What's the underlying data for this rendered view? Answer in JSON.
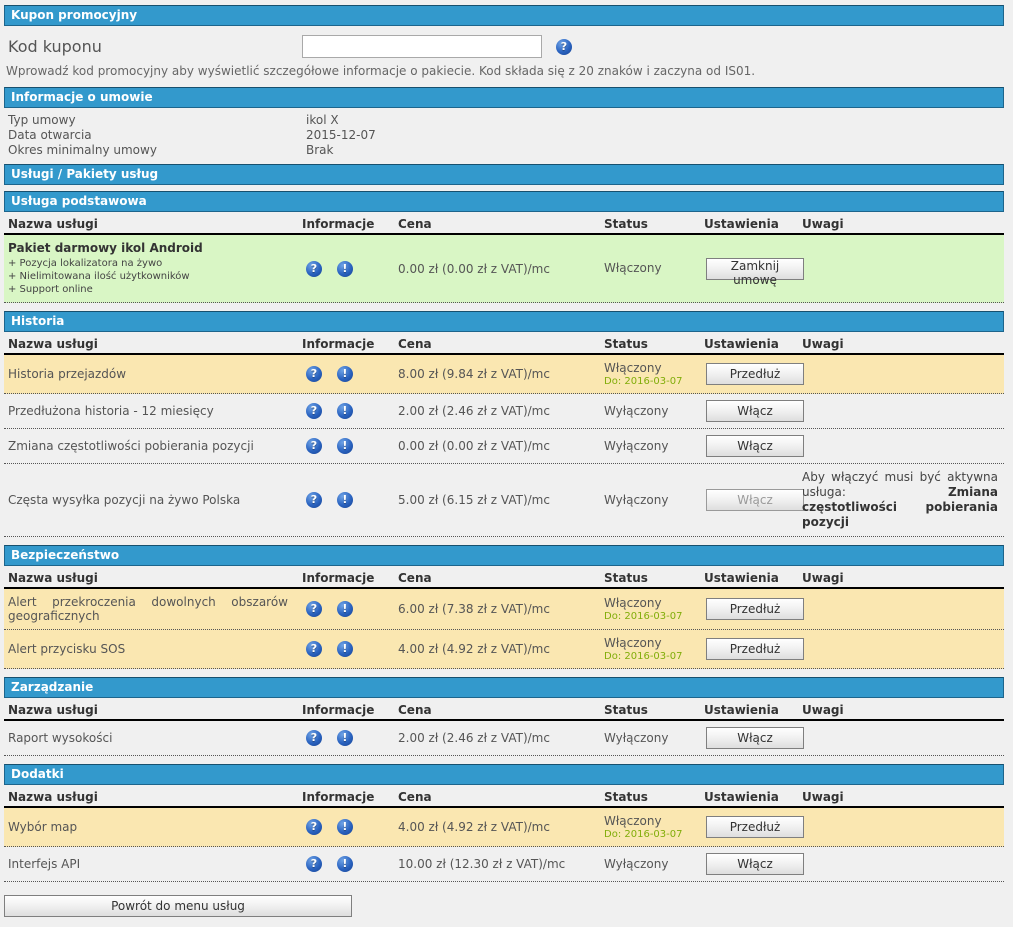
{
  "colors": {
    "bar_blue": "#3399cc",
    "highlight_yellow": "#fae7b1",
    "highlight_green": "#d9f6c5",
    "date_green": "#81ad0a"
  },
  "icons": {
    "help": "?",
    "info": "!"
  },
  "coupon": {
    "header": "Kupon promocyjny",
    "label": "Kod kuponu",
    "input_value": "",
    "hint": "Wprowadź kod promocyjny aby wyświetlić szczegółowe informacje o pakiecie. Kod składa się z 20 znaków i zaczyna od IS01."
  },
  "contract": {
    "header": "Informacje o umowie",
    "rows": [
      {
        "label": "Typ umowy",
        "value": "ikol X"
      },
      {
        "label": "Data otwarcia",
        "value": "2015-12-07"
      },
      {
        "label": "Okres minimalny umowy",
        "value": "Brak"
      }
    ]
  },
  "services": {
    "header": "Usługi / Pakiety usług",
    "columns": [
      "Nazwa usługi",
      "Informacje",
      "Cena",
      "Status",
      "Ustawienia",
      "Uwagi"
    ],
    "sections": [
      {
        "title": "Usługa podstawowa",
        "rows": [
          {
            "name": "Pakiet darmowy ikol Android",
            "features": [
              "+ Pozycja lokalizatora na żywo",
              "+ Nielimitowana ilość użytkowników",
              "+ Support online"
            ],
            "price": "0.00 zł (0.00 zł z VAT)/mc",
            "status": "Włączony",
            "status_until": "",
            "button": "Zamknij umowę",
            "button_disabled": false,
            "highlight": "green",
            "note_prefix": "",
            "note_bold": ""
          }
        ]
      },
      {
        "title": "Historia",
        "rows": [
          {
            "name": "Historia przejazdów",
            "price": "8.00 zł (9.84 zł z VAT)/mc",
            "status": "Włączony",
            "status_until": "Do: 2016-03-07",
            "button": "Przedłuż",
            "button_disabled": false,
            "highlight": "yellow",
            "note_prefix": "",
            "note_bold": ""
          },
          {
            "name": "Przedłużona historia - 12 miesięcy",
            "price": "2.00 zł (2.46 zł z VAT)/mc",
            "status": "Wyłączony",
            "status_until": "",
            "button": "Włącz",
            "button_disabled": false,
            "highlight": "none",
            "note_prefix": "",
            "note_bold": ""
          },
          {
            "name": "Zmiana częstotliwości pobierania pozycji",
            "price": "0.00 zł (0.00 zł z VAT)/mc",
            "status": "Wyłączony",
            "status_until": "",
            "button": "Włącz",
            "button_disabled": false,
            "highlight": "none",
            "note_prefix": "",
            "note_bold": ""
          },
          {
            "name": "Częsta wysyłka pozycji na żywo Polska",
            "price": "5.00 zł (6.15 zł z VAT)/mc",
            "status": "Wyłączony",
            "status_until": "",
            "button": "Włącz",
            "button_disabled": true,
            "highlight": "none",
            "note_prefix": "Aby włączyć musi być aktywna usługa: ",
            "note_bold": "Zmiana częstotliwości pobierania pozycji"
          }
        ]
      },
      {
        "title": "Bezpieczeństwo",
        "rows": [
          {
            "name": "Alert przekroczenia dowolnych obszarów geograficznych",
            "price": "6.00 zł (7.38 zł z VAT)/mc",
            "status": "Włączony",
            "status_until": "Do: 2016-03-07",
            "button": "Przedłuż",
            "button_disabled": false,
            "highlight": "yellow",
            "note_prefix": "",
            "note_bold": ""
          },
          {
            "name": "Alert przycisku SOS",
            "price": "4.00 zł (4.92 zł z VAT)/mc",
            "status": "Włączony",
            "status_until": "Do: 2016-03-07",
            "button": "Przedłuż",
            "button_disabled": false,
            "highlight": "yellow",
            "note_prefix": "",
            "note_bold": ""
          }
        ]
      },
      {
        "title": "Zarządzanie",
        "rows": [
          {
            "name": "Raport wysokości",
            "price": "2.00 zł (2.46 zł z VAT)/mc",
            "status": "Wyłączony",
            "status_until": "",
            "button": "Włącz",
            "button_disabled": false,
            "highlight": "none",
            "note_prefix": "",
            "note_bold": ""
          }
        ]
      },
      {
        "title": "Dodatki",
        "rows": [
          {
            "name": "Wybór map",
            "price": "4.00 zł (4.92 zł z VAT)/mc",
            "status": "Włączony",
            "status_until": "Do: 2016-03-07",
            "button": "Przedłuż",
            "button_disabled": false,
            "highlight": "yellow",
            "note_prefix": "",
            "note_bold": ""
          },
          {
            "name": "Interfejs API",
            "price": "10.00 zł (12.30 zł z VAT)/mc",
            "status": "Wyłączony",
            "status_until": "",
            "button": "Włącz",
            "button_disabled": false,
            "highlight": "none",
            "note_prefix": "",
            "note_bold": ""
          }
        ]
      }
    ]
  },
  "footer": {
    "back_label": "Powrót do menu usług"
  }
}
